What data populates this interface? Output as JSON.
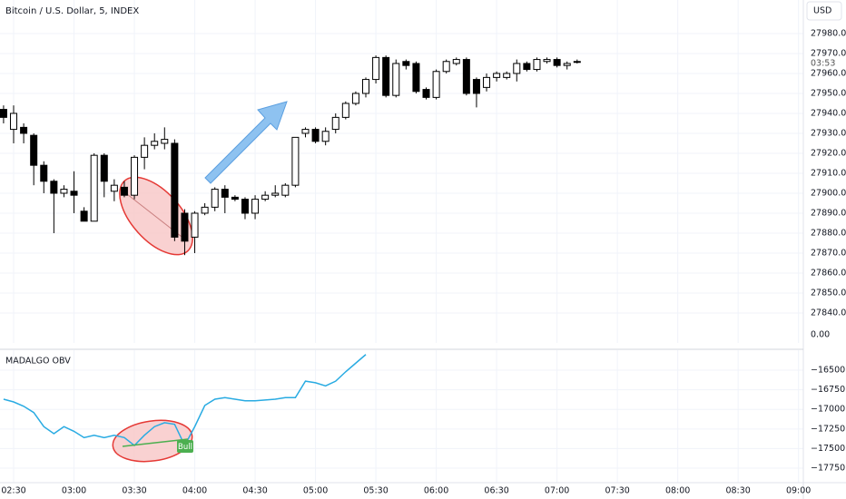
{
  "chart_data": [
    {
      "type": "candlestick",
      "title": "Bitcoin / U.S. Dollar, 5, INDEX",
      "currency": "USD",
      "countdown": "03:53",
      "extra_scale_label": "0.00",
      "up_color": "#ffffff",
      "down_color": "#000000",
      "grid": true,
      "x": [
        145,
        150,
        155,
        160,
        165,
        170,
        175,
        180,
        185,
        190,
        195,
        200,
        205,
        210,
        215,
        220,
        225,
        230,
        235,
        240,
        245,
        250,
        255,
        260,
        265,
        270,
        275,
        280,
        285,
        290,
        295,
        300,
        305,
        310,
        315,
        320,
        325,
        330,
        335,
        340,
        345,
        350,
        355,
        360,
        365,
        370,
        375,
        380,
        385,
        390,
        395,
        400,
        405,
        410,
        415,
        420,
        425,
        430
      ],
      "open": [
        27942,
        27932,
        27933,
        27929,
        27914,
        27906,
        27900,
        27901,
        27891,
        27886,
        27919,
        27901,
        27903,
        27899,
        27918,
        27924,
        27925,
        27925,
        27890,
        27878,
        27890,
        27893,
        27902,
        27898,
        27897,
        27890,
        27897,
        27899,
        27899,
        27904,
        27930,
        27932,
        27926,
        27932,
        27938,
        27945,
        27950,
        27957,
        27968,
        27949,
        27966,
        27965,
        27952,
        27948,
        27961,
        27965,
        27967,
        27957,
        27953,
        27958,
        27958,
        27960,
        27965,
        27962,
        27966,
        27967,
        27964,
        27966
      ],
      "high": [
        27944,
        27944,
        27935,
        27930,
        27916,
        27907,
        27904,
        27911,
        27893,
        27920,
        27920,
        27907,
        27906,
        27919,
        27928,
        27930,
        27933,
        27927,
        27892,
        27891,
        27895,
        27903,
        27904,
        27899,
        27898,
        27899,
        27901,
        27904,
        27905,
        27928,
        27933,
        27933,
        27933,
        27940,
        27946,
        27951,
        27958,
        27969,
        27969,
        27967,
        27967,
        27966,
        27953,
        27962,
        27967,
        27968,
        27968,
        27958,
        27960,
        27961,
        27961,
        27967,
        27966,
        27968,
        27968,
        27968,
        27966,
        27967
      ],
      "low": [
        27935,
        27925,
        27925,
        27904,
        27900,
        27880,
        27898,
        27890,
        27886,
        27886,
        27898,
        27896,
        27898,
        27897,
        27912,
        27922,
        27922,
        27876,
        27869,
        27870,
        27889,
        27891,
        27890,
        27896,
        27887,
        27887,
        27896,
        27898,
        27898,
        27903,
        27928,
        27925,
        27924,
        27930,
        27937,
        27944,
        27948,
        27955,
        27948,
        27948,
        27962,
        27950,
        27947,
        27947,
        27960,
        27964,
        27949,
        27943,
        27951,
        27956,
        27957,
        27956,
        27961,
        27961,
        27965,
        27963,
        27962,
        27965
      ],
      "close": [
        27938,
        27940,
        27930,
        27914,
        27906,
        27900,
        27902,
        27899,
        27886,
        27919,
        27906,
        27904,
        27899,
        27918,
        27924,
        27926,
        27927,
        27878,
        27876,
        27890,
        27893,
        27902,
        27898,
        27897,
        27890,
        27897,
        27899,
        27900,
        27904,
        27928,
        27932,
        27926,
        27931,
        27938,
        27945,
        27950,
        27957,
        27968,
        27949,
        27965,
        27964,
        27951,
        27948,
        27961,
        27966,
        27967,
        27950,
        27950,
        27958,
        27960,
        27960,
        27965,
        27962,
        27967,
        27967,
        27964,
        27965,
        27966
      ],
      "xlim": [
        143.23,
        542.4
      ],
      "xticks": [
        {
          "value": 150,
          "label": "02:30"
        },
        {
          "value": 180,
          "label": "03:00"
        },
        {
          "value": 210,
          "label": "03:30"
        },
        {
          "value": 240,
          "label": "04:00"
        },
        {
          "value": 270,
          "label": "04:30"
        },
        {
          "value": 300,
          "label": "05:00"
        },
        {
          "value": 330,
          "label": "05:30"
        },
        {
          "value": 360,
          "label": "06:00"
        },
        {
          "value": 390,
          "label": "06:30"
        },
        {
          "value": 420,
          "label": "07:00"
        },
        {
          "value": 450,
          "label": "07:30"
        },
        {
          "value": 480,
          "label": "08:00"
        },
        {
          "value": 510,
          "label": "08:30"
        },
        {
          "value": 540,
          "label": "09:00"
        }
      ],
      "ylim": [
        27825,
        27996.8
      ],
      "yticks": [
        {
          "value": 27980,
          "label": "27980.00"
        },
        {
          "value": 27970,
          "label": "27970.00"
        },
        {
          "value": 27960,
          "label": "27960.00"
        },
        {
          "value": 27950,
          "label": "27950.00"
        },
        {
          "value": 27940,
          "label": "27940.00"
        },
        {
          "value": 27930,
          "label": "27930.00"
        },
        {
          "value": 27920,
          "label": "27920.00"
        },
        {
          "value": 27910,
          "label": "27910.00"
        },
        {
          "value": 27900,
          "label": "27900.00"
        },
        {
          "value": 27890,
          "label": "27890.00"
        },
        {
          "value": 27880,
          "label": "27880.00"
        },
        {
          "value": 27870,
          "label": "27870.00"
        },
        {
          "value": 27860,
          "label": "27860.00"
        },
        {
          "value": 27850,
          "label": "27850.00"
        },
        {
          "value": 27840,
          "label": "27840.00"
        }
      ]
    },
    {
      "type": "line",
      "title": "MADALGO OBV",
      "signal_label": "Bull",
      "color": "#29abe2",
      "grid": true,
      "x": [
        145,
        150,
        155,
        160,
        165,
        170,
        175,
        180,
        185,
        190,
        195,
        200,
        205,
        210,
        215,
        220,
        225,
        230,
        235,
        240,
        245,
        250,
        255,
        260,
        265,
        270,
        275,
        280,
        285,
        290,
        295,
        300,
        305,
        310,
        315,
        320,
        325
      ],
      "values": [
        -16870,
        -16905,
        -16960,
        -17040,
        -17220,
        -17310,
        -17220,
        -17280,
        -17360,
        -17330,
        -17360,
        -17330,
        -17360,
        -17460,
        -17330,
        -17220,
        -17170,
        -17190,
        -17460,
        -17220,
        -16950,
        -16870,
        -16850,
        -16870,
        -16890,
        -16890,
        -16880,
        -16870,
        -16850,
        -16850,
        -16640,
        -16660,
        -16700,
        -16640,
        -16520,
        -16410,
        -16300
      ],
      "xlim": [
        143.23,
        542.4
      ],
      "ylim": [
        -17935,
        -16245
      ],
      "yticks": [
        {
          "value": -16500,
          "label": "−16500.00"
        },
        {
          "value": -16750,
          "label": "−16750.00"
        },
        {
          "value": -17000,
          "label": "−17000.00"
        },
        {
          "value": -17250,
          "label": "−17250.00"
        },
        {
          "value": -17500,
          "label": "−17500.00"
        },
        {
          "value": -17750,
          "label": "−17750.00"
        }
      ]
    }
  ]
}
